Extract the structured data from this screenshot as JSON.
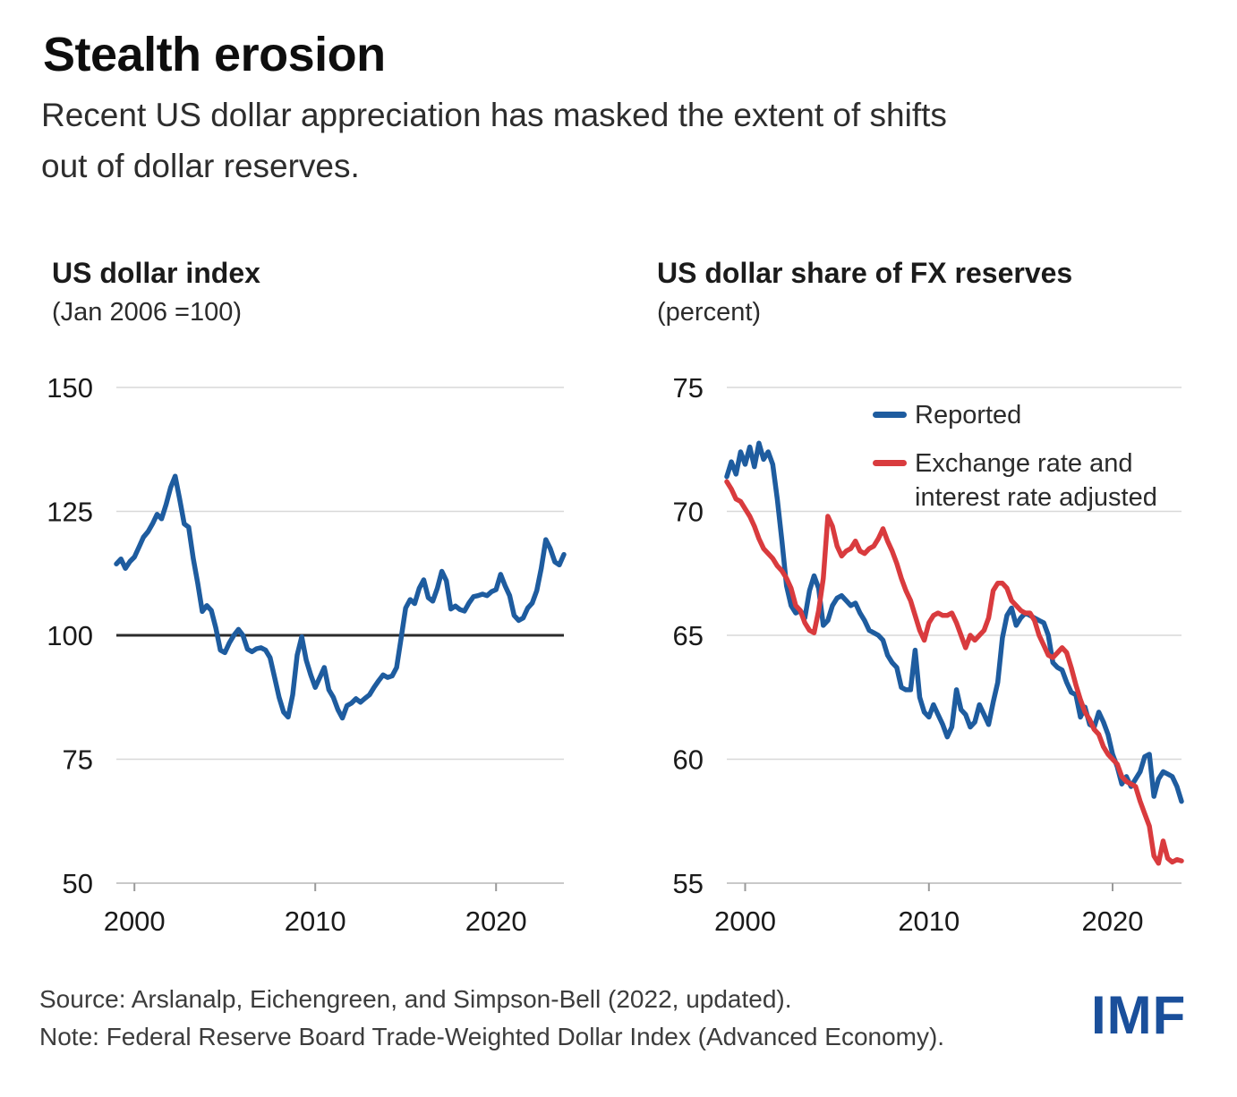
{
  "header": {
    "title": "Stealth erosion",
    "subtitle": "Recent US dollar appreciation has masked the extent of shifts\nout of dollar reserves."
  },
  "footer": {
    "source": "Source: Arslanalp, Eichengreen, and Simpson-Bell (2022, updated).",
    "note": "Note: Federal Reserve Board Trade-Weighted Dollar Index (Advanced Economy).",
    "logo": "IMF"
  },
  "colors": {
    "line_blue": "#1e5c9f",
    "line_red": "#d93b3e",
    "grid": "#d8d8d8",
    "axis_baseline": "#c9c9c9",
    "tick_mark": "#9a9a9a",
    "reference_line": "#2b2b2b",
    "imf_blue": "#1a4f9b"
  },
  "chart_data": [
    {
      "type": "line",
      "title": "US dollar index",
      "subtitle": "(Jan 2006 =100)",
      "xlim": [
        1999,
        2023.75
      ],
      "ylim": [
        50,
        150
      ],
      "y_ticks": [
        50,
        75,
        100,
        125,
        150
      ],
      "x_ticks": [
        2000,
        2010,
        2020
      ],
      "reference_line": 100,
      "grid": true,
      "legend_position": "none",
      "x_start": 1999,
      "x_step": 0.25,
      "series": [
        {
          "name": "US dollar index",
          "color": "#1e5c9f",
          "values": [
            114.4,
            115.4,
            113.5,
            114.9,
            115.8,
            117.8,
            119.8,
            120.9,
            122.5,
            124.4,
            123.5,
            126.4,
            129.8,
            132.1,
            127.5,
            122.5,
            121.8,
            115.5,
            110.5,
            104.8,
            106.0,
            105.0,
            101.5,
            97.0,
            96.5,
            98.5,
            100.0,
            101.2,
            100.0,
            97.2,
            96.7,
            97.3,
            97.5,
            97.0,
            95.5,
            91.5,
            87.5,
            84.5,
            83.5,
            88.0,
            96.0,
            99.7,
            95.0,
            92.0,
            89.5,
            91.5,
            93.5,
            89.0,
            87.5,
            85.0,
            83.3,
            85.8,
            86.3,
            87.2,
            86.5,
            87.3,
            88.0,
            89.5,
            90.8,
            92.0,
            91.5,
            91.8,
            93.5,
            99.5,
            105.5,
            107.2,
            106.4,
            109.5,
            111.2,
            107.6,
            106.9,
            109.5,
            112.9,
            111.0,
            105.3,
            105.9,
            105.2,
            104.9,
            106.5,
            107.8,
            108.0,
            108.3,
            108.0,
            108.8,
            109.2,
            112.3,
            110.0,
            108.0,
            104.0,
            103.0,
            103.5,
            105.5,
            106.5,
            109.0,
            113.5,
            119.3,
            117.5,
            114.8,
            114.2,
            116.3
          ]
        }
      ]
    },
    {
      "type": "line",
      "title": "US dollar share of FX reserves",
      "subtitle": "(percent)",
      "xlim": [
        1999,
        2023.75
      ],
      "ylim": [
        55,
        75
      ],
      "y_ticks": [
        55,
        60,
        65,
        70,
        75
      ],
      "x_ticks": [
        2000,
        2010,
        2020
      ],
      "reference_line": null,
      "grid": true,
      "legend_position": "top-right",
      "x_start": 1999,
      "x_step": 0.25,
      "series": [
        {
          "name": "Reported",
          "color": "#1e5c9f",
          "values": [
            71.4,
            72.0,
            71.5,
            72.4,
            71.9,
            72.6,
            71.8,
            72.75,
            72.1,
            72.4,
            71.9,
            70.5,
            68.8,
            67.0,
            66.2,
            65.9,
            66.0,
            65.7,
            66.8,
            67.4,
            66.9,
            65.4,
            65.6,
            66.2,
            66.5,
            66.6,
            66.4,
            66.2,
            66.3,
            65.9,
            65.6,
            65.2,
            65.1,
            65.0,
            64.8,
            64.2,
            63.9,
            63.7,
            62.9,
            62.8,
            62.8,
            64.4,
            62.5,
            61.9,
            61.7,
            62.2,
            61.8,
            61.4,
            60.9,
            61.3,
            62.8,
            62.0,
            61.8,
            61.3,
            61.5,
            62.2,
            61.8,
            61.4,
            62.3,
            63.1,
            64.9,
            65.8,
            66.1,
            65.4,
            65.7,
            65.9,
            65.8,
            65.7,
            65.6,
            65.5,
            65.0,
            63.9,
            63.7,
            63.6,
            63.1,
            62.7,
            62.6,
            61.7,
            62.1,
            61.4,
            61.3,
            61.9,
            61.5,
            61.0,
            60.2,
            59.7,
            59.0,
            59.3,
            58.9,
            59.2,
            59.5,
            60.1,
            60.2,
            58.5,
            59.2,
            59.5,
            59.4,
            59.3,
            58.9,
            58.3
          ]
        },
        {
          "name": "Exchange rate and\ninterest rate adjusted",
          "color": "#d93b3e",
          "values": [
            71.2,
            70.9,
            70.5,
            70.4,
            70.1,
            69.8,
            69.4,
            68.9,
            68.5,
            68.3,
            68.1,
            67.8,
            67.6,
            67.3,
            66.9,
            66.2,
            66.0,
            65.5,
            65.2,
            65.1,
            66.0,
            67.3,
            69.8,
            69.4,
            68.6,
            68.2,
            68.4,
            68.5,
            68.8,
            68.4,
            68.3,
            68.5,
            68.6,
            68.9,
            69.3,
            68.8,
            68.4,
            67.9,
            67.3,
            66.8,
            66.4,
            65.8,
            65.2,
            64.8,
            65.5,
            65.8,
            65.9,
            65.8,
            65.8,
            65.9,
            65.5,
            65.0,
            64.5,
            65.0,
            64.8,
            65.0,
            65.2,
            65.7,
            66.8,
            67.1,
            67.1,
            66.9,
            66.4,
            66.2,
            66.0,
            65.9,
            65.9,
            65.6,
            65.0,
            64.6,
            64.2,
            64.1,
            64.3,
            64.5,
            64.3,
            63.7,
            63.0,
            62.4,
            61.9,
            61.6,
            61.2,
            61.0,
            60.5,
            60.2,
            60.0,
            59.8,
            59.3,
            59.1,
            59.0,
            58.9,
            58.3,
            57.8,
            57.3,
            56.1,
            55.8,
            56.7,
            56.0,
            55.85,
            55.95,
            55.9
          ]
        }
      ]
    }
  ]
}
